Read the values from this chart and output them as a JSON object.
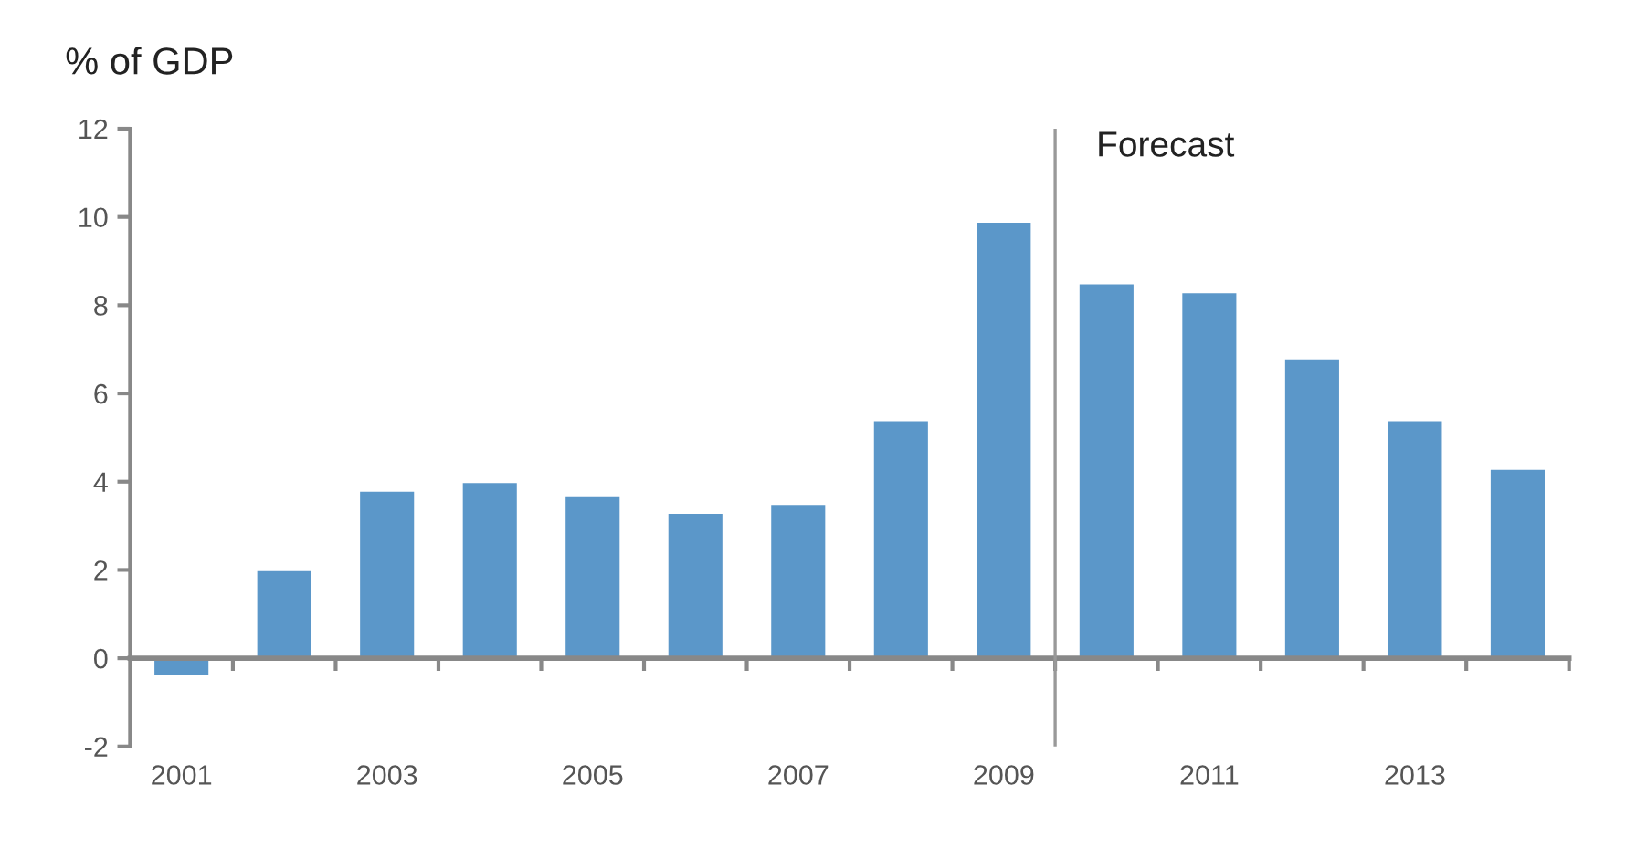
{
  "chart_data": {
    "type": "bar",
    "ylabel": "% of GDP",
    "x": [
      2001,
      2002,
      2003,
      2004,
      2005,
      2006,
      2007,
      2008,
      2009,
      2010,
      2011,
      2012,
      2013,
      2014
    ],
    "values": [
      -0.4,
      2.0,
      3.8,
      4.0,
      3.7,
      3.3,
      3.5,
      5.4,
      9.9,
      8.5,
      8.3,
      6.8,
      5.4,
      4.3
    ],
    "color": "#5b97c9",
    "xlim": [
      2000.5,
      2014.5
    ],
    "xticks": [
      2001,
      2003,
      2005,
      2007,
      2009,
      2011,
      2013,
      {
        "value": 2001.5,
        "label": null
      },
      {
        "value": 2002.5,
        "label": null
      },
      {
        "value": 2003.5,
        "label": null
      },
      {
        "value": 2004.5,
        "label": null
      },
      {
        "value": 2005.5,
        "label": null
      },
      {
        "value": 2006.5,
        "label": null
      },
      {
        "value": 2007.5,
        "label": null
      },
      {
        "value": 2008.5,
        "label": null
      },
      {
        "value": 2009.5,
        "label": null
      },
      {
        "value": 2010.5,
        "label": null
      },
      {
        "value": 2011.5,
        "label": null
      },
      {
        "value": 2012.5,
        "label": null
      },
      {
        "value": 2013.5,
        "label": null
      },
      {
        "value": 2014.5,
        "label": null
      }
    ],
    "ylim": [
      -2,
      12
    ],
    "yticks": [
      -2,
      0,
      2,
      4,
      6,
      8,
      10,
      12
    ],
    "ref_lines": [
      {
        "axis": "x",
        "value": 2009.5,
        "label": "Forecast",
        "color": "#999999"
      }
    ],
    "grid": false,
    "legend": false
  }
}
